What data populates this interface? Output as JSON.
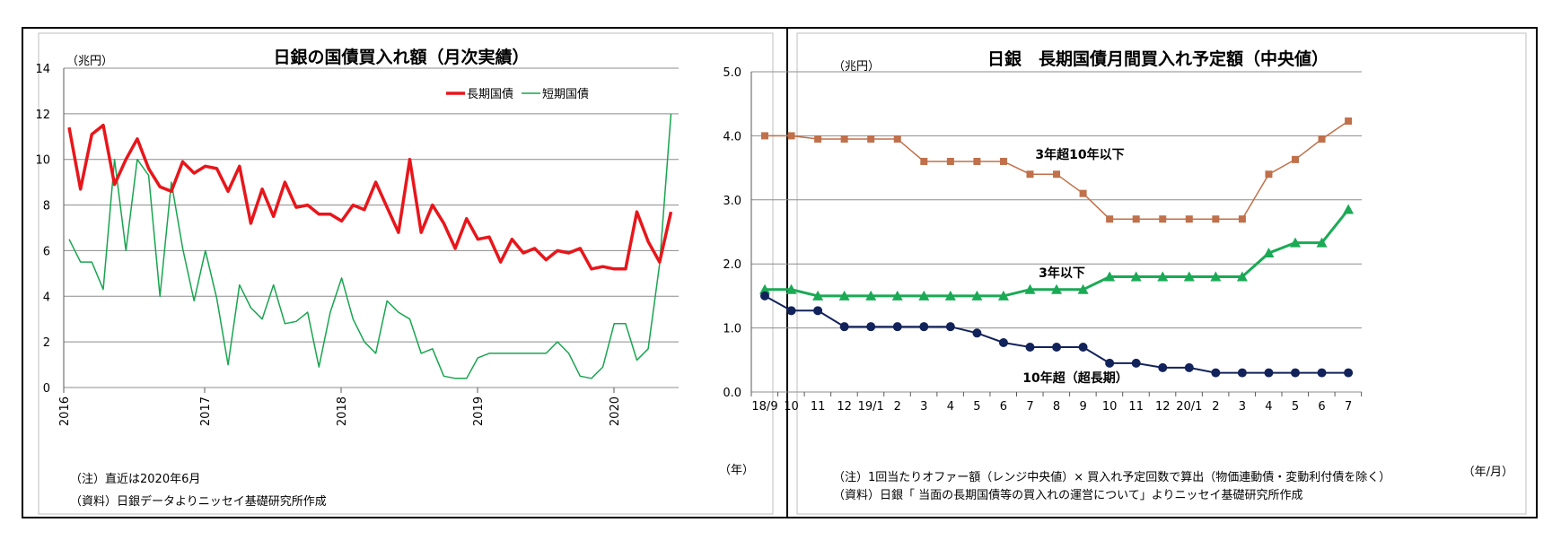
{
  "chart_data": [
    {
      "type": "line",
      "title": "日銀の国債買入れ額（月次実績）",
      "unit_label": "（兆円）",
      "xunit_label": "（年）",
      "ylim": [
        0,
        14
      ],
      "yticks": [
        "0",
        "2",
        "4",
        "6",
        "8",
        "10",
        "12",
        "14"
      ],
      "xtick_labels": [
        "2016",
        "2017",
        "2018",
        "2019",
        "2020"
      ],
      "legend_position": "top-right",
      "grid": true,
      "series": [
        {
          "name": "長期国債",
          "color": "#e8161b",
          "values": [
            11.4,
            8.7,
            11.1,
            11.5,
            8.9,
            10.0,
            10.9,
            9.6,
            8.8,
            8.6,
            9.9,
            9.4,
            9.7,
            9.6,
            8.6,
            9.7,
            7.2,
            8.7,
            7.5,
            9.0,
            7.9,
            8.0,
            7.6,
            7.6,
            7.3,
            8.0,
            7.8,
            9.0,
            7.9,
            6.8,
            10.0,
            6.8,
            8.0,
            7.2,
            6.1,
            7.4,
            6.5,
            6.6,
            5.5,
            6.5,
            5.9,
            6.1,
            5.6,
            6.0,
            5.9,
            6.1,
            5.2,
            5.3,
            5.2,
            5.2,
            7.7,
            6.4,
            5.5,
            7.7
          ]
        },
        {
          "name": "短期国債",
          "color": "#18a54f",
          "values": [
            6.5,
            5.5,
            5.5,
            4.3,
            10.0,
            6.0,
            10.0,
            9.3,
            4.0,
            9.0,
            6.1,
            3.8,
            6.0,
            3.9,
            1.0,
            4.5,
            3.5,
            3.0,
            4.5,
            2.8,
            2.9,
            3.3,
            0.9,
            3.3,
            4.8,
            3.0,
            2.0,
            1.5,
            3.8,
            3.3,
            3.0,
            1.5,
            1.7,
            0.5,
            0.4,
            0.4,
            1.3,
            1.5,
            1.5,
            1.5,
            1.5,
            1.5,
            1.5,
            2.0,
            1.5,
            0.5,
            0.4,
            0.9,
            2.8,
            2.8,
            1.2,
            1.7,
            5.4,
            12.0
          ]
        }
      ],
      "notes": [
        "（注）直近は2020年6月",
        "（資料）日銀データよりニッセイ基礎研究所作成"
      ]
    },
    {
      "type": "line",
      "title": "日銀　長期国債月間買入れ予定額（中央値）",
      "unit_label": "（兆円）",
      "xunit_label": "（年/月）",
      "ylim": [
        0,
        5
      ],
      "yticks": [
        "0.0",
        "1.0",
        "2.0",
        "3.0",
        "4.0",
        "5.0"
      ],
      "categories": [
        "18/9",
        "10",
        "11",
        "12",
        "19/1",
        "2",
        "3",
        "4",
        "5",
        "6",
        "7",
        "8",
        "9",
        "10",
        "11",
        "12",
        "20/1",
        "2",
        "3",
        "4",
        "5",
        "6",
        "7"
      ],
      "grid": true,
      "series": [
        {
          "name": "3年超10年以下",
          "color": "#c0704a",
          "marker": "square",
          "values": [
            4.0,
            4.0,
            3.95,
            3.95,
            3.95,
            3.95,
            3.6,
            3.6,
            3.6,
            3.6,
            3.4,
            3.4,
            3.1,
            2.7,
            2.7,
            2.7,
            2.7,
            2.7,
            2.7,
            3.4,
            3.63,
            3.95,
            4.23
          ]
        },
        {
          "name": "3年以下",
          "color": "#1aaa55",
          "marker": "triangle",
          "values": [
            1.6,
            1.6,
            1.5,
            1.5,
            1.5,
            1.5,
            1.5,
            1.5,
            1.5,
            1.5,
            1.6,
            1.6,
            1.6,
            1.8,
            1.8,
            1.8,
            1.8,
            1.8,
            1.8,
            2.17,
            2.33,
            2.33,
            2.85
          ]
        },
        {
          "name": "10年超（超長期）",
          "color": "#12225a",
          "marker": "circle",
          "values": [
            1.5,
            1.27,
            1.27,
            1.02,
            1.02,
            1.02,
            1.02,
            1.02,
            0.92,
            0.77,
            0.7,
            0.7,
            0.7,
            0.45,
            0.45,
            0.38,
            0.38,
            0.3,
            0.3,
            0.3,
            0.3,
            0.3,
            0.3
          ]
        }
      ],
      "notes": [
        "（注）1回当たりオファー額（レンジ中央値）× 買入れ予定回数で算出（物価連動債・変動利付債を除く）",
        "（資料）日銀「 当面の長期国債等の買入れの運営について」よりニッセイ基礎研究所作成"
      ]
    }
  ]
}
